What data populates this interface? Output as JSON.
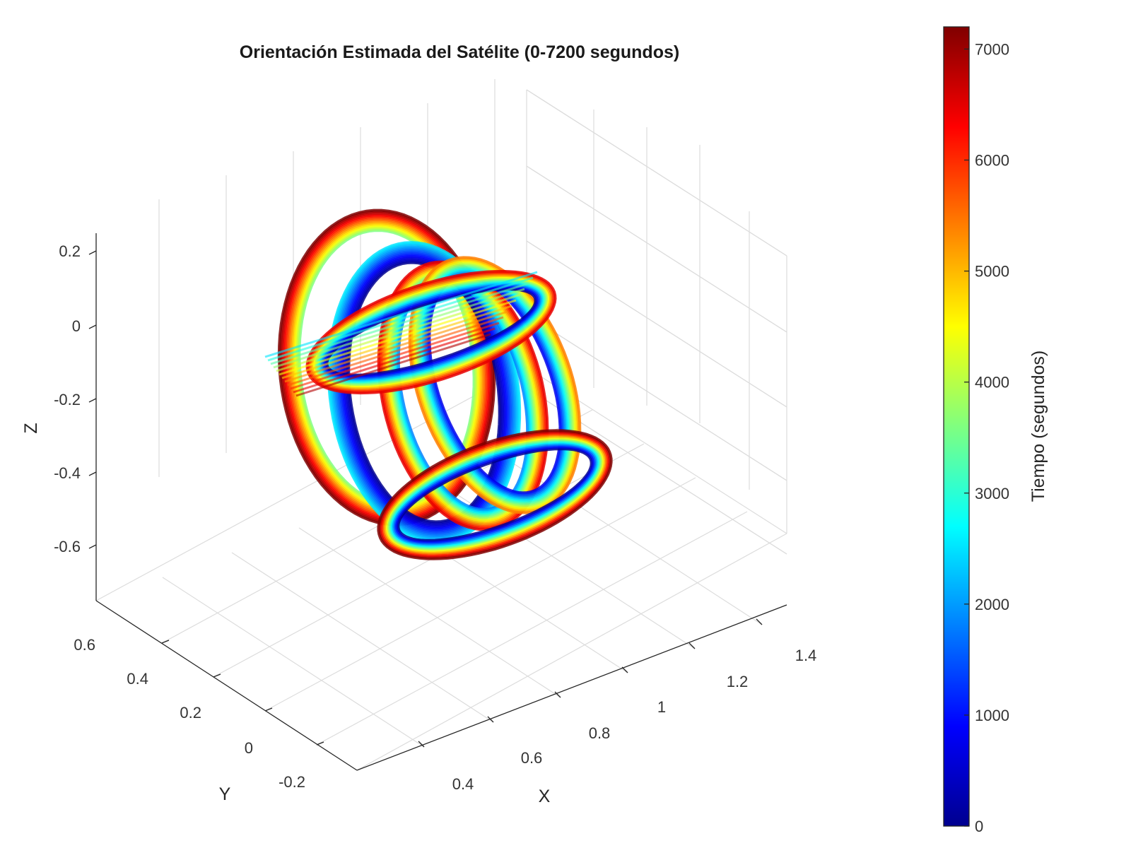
{
  "chart_data": {
    "type": "scatter",
    "title": "Orientación Estimada del Satélite (0-7200 segundos)",
    "xlabel": "X",
    "ylabel": "Y",
    "zlabel": "Z",
    "x_ticks": [
      "0.4",
      "0.6",
      "0.8",
      "1",
      "1.2",
      "1.4"
    ],
    "y_ticks": [
      "-0.2",
      "0",
      "0.2",
      "0.4",
      "0.6"
    ],
    "z_ticks": [
      "-0.6",
      "-0.4",
      "-0.2",
      "0",
      "0.2"
    ],
    "xlim": [
      0.25,
      1.45
    ],
    "ylim": [
      -0.3,
      0.65
    ],
    "zlim": [
      -0.75,
      0.25
    ],
    "grid": true,
    "colormap": "jet",
    "colorbar": {
      "label": "Tiempo (segundos)",
      "ticks": [
        "0",
        "1000",
        "2000",
        "3000",
        "4000",
        "5000",
        "6000",
        "7000"
      ],
      "range": [
        0,
        7200
      ]
    },
    "time_range": [
      0,
      7200
    ],
    "colors": {
      "jet_0": "#00008f",
      "jet_1": "#0000ff",
      "jet_2": "#00ffff",
      "jet_3": "#ffff00",
      "jet_4": "#ff0000",
      "jet_5": "#800000"
    }
  }
}
